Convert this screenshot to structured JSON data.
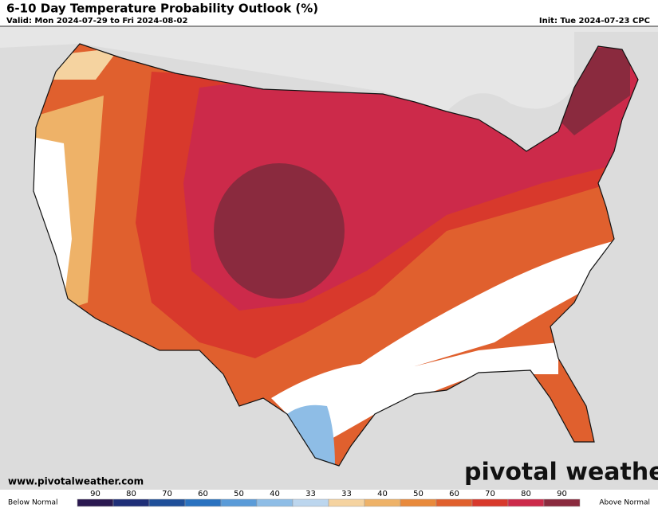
{
  "header": {
    "title": "6-10 Day Temperature Probability Outlook (%)",
    "valid": "Valid: Mon 2024-07-29 to Fri 2024-08-02",
    "init": "Init: Tue 2024-07-23 CPC"
  },
  "footer": {
    "website": "www.pivotalweather.com",
    "brand": "pivotal weather"
  },
  "legend": {
    "below_label": "Below Normal",
    "above_label": "Above Normal",
    "bins": [
      {
        "label": "90",
        "color": "#2a1850"
      },
      {
        "label": "80",
        "color": "#1f2f78"
      },
      {
        "label": "70",
        "color": "#1f4f99"
      },
      {
        "label": "60",
        "color": "#2a72c0"
      },
      {
        "label": "50",
        "color": "#5a9bd8"
      },
      {
        "label": "40",
        "color": "#8ebde6"
      },
      {
        "label": "33",
        "color": "#bcd6ee"
      },
      {
        "label": "33",
        "color": "#f5d3a0"
      },
      {
        "label": "40",
        "color": "#eeb268"
      },
      {
        "label": "50",
        "color": "#e88a3c"
      },
      {
        "label": "60",
        "color": "#e0602e"
      },
      {
        "label": "70",
        "color": "#d8392c"
      },
      {
        "label": "80",
        "color": "#cc2a4a"
      },
      {
        "label": "90",
        "color": "#8a2a3e"
      }
    ]
  }
}
